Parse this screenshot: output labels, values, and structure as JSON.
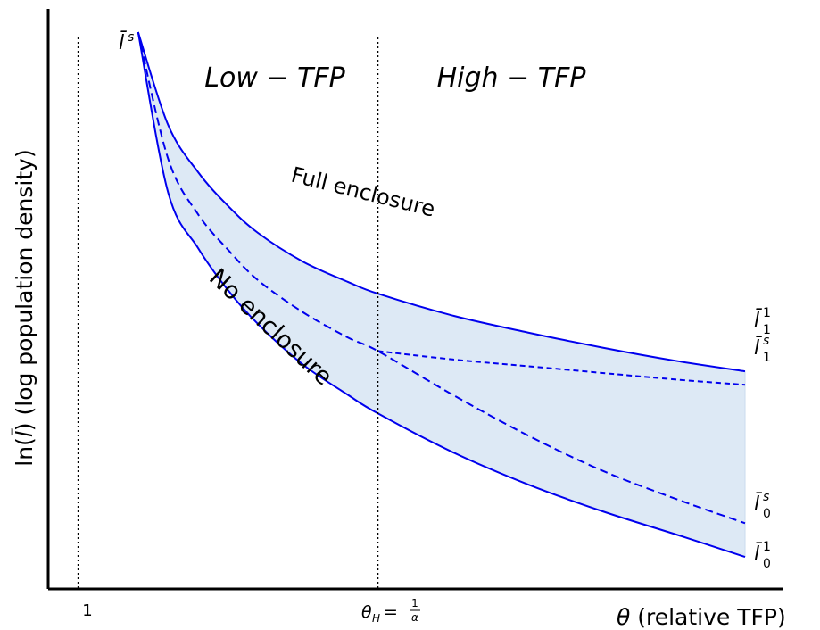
{
  "chart_data": {
    "type": "line",
    "xlabel": {
      "symbol": "θ",
      "text": " (relative TFP)"
    },
    "ylabel": {
      "prefix": "ln(",
      "symbol": "l̄",
      "suffix": ") (log population density)"
    },
    "x_ticks": [
      {
        "value": 1,
        "label": "1"
      },
      {
        "value": 3,
        "label_main": "θ",
        "label_sub": "H",
        "label_eq": " = ",
        "label_num": "1",
        "label_den": "α"
      }
    ],
    "xlim": [
      0.8,
      5.7
    ],
    "ylim": [
      -0.3,
      3.0
    ],
    "curve_x_start": 1.4,
    "curve_x_end": 5.45,
    "threshold_x": 3,
    "regions": [
      {
        "name": "low",
        "label": "Low − TFP"
      },
      {
        "name": "high",
        "label": "High − TFP"
      }
    ],
    "annotations": {
      "full_enclosure": "Full enclosure",
      "no_enclosure": "No enclosure"
    },
    "end_labels": {
      "start": {
        "base": "l̄",
        "sup": "s",
        "sub": ""
      },
      "full": {
        "base": "l̄",
        "sup": "1",
        "sub": "1"
      },
      "s1": {
        "base": "l̄",
        "sup": "s",
        "sub": "1"
      },
      "s0": {
        "base": "l̄",
        "sup": "s",
        "sub": "0"
      },
      "none": {
        "base": "l̄",
        "sup": "1",
        "sub": "0"
      }
    },
    "series": [
      {
        "key": "full",
        "style": "solid",
        "x": [
          1.4,
          1.6,
          1.8,
          2.0,
          2.2,
          2.5,
          2.8,
          3.0,
          3.5,
          4.0,
          4.5,
          5.0,
          5.45
        ],
        "y": [
          3.0,
          2.45,
          2.17,
          1.97,
          1.81,
          1.64,
          1.52,
          1.45,
          1.32,
          1.22,
          1.13,
          1.05,
          0.99
        ]
      },
      {
        "key": "none",
        "style": "solid",
        "x": [
          1.4,
          1.6,
          1.8,
          2.0,
          2.2,
          2.5,
          2.8,
          3.0,
          3.5,
          4.0,
          4.5,
          5.0,
          5.45
        ],
        "y": [
          3.0,
          2.05,
          1.72,
          1.47,
          1.27,
          1.03,
          0.85,
          0.74,
          0.51,
          0.32,
          0.16,
          0.02,
          -0.11
        ]
      },
      {
        "key": "s_curve",
        "style": "dashed",
        "x": [
          1.4,
          1.6,
          1.8,
          2.0,
          2.2,
          2.5,
          2.8,
          3.0,
          3.5,
          4.0,
          4.5,
          5.0,
          5.45
        ],
        "y": [
          3.0,
          2.25,
          1.92,
          1.71,
          1.53,
          1.34,
          1.19,
          1.11,
          0.85,
          0.61,
          0.4,
          0.23,
          0.09
        ]
      },
      {
        "key": "s_branch",
        "style": "dashed",
        "x": [
          3.0,
          3.5,
          4.0,
          4.5,
          5.0,
          5.45
        ],
        "y": [
          1.11,
          1.06,
          1.02,
          0.98,
          0.94,
          0.91
        ]
      }
    ],
    "colors": {
      "curve": "#0000ee",
      "fill": "#dde9f5",
      "axis": "#000000"
    },
    "grid": false,
    "legend": "none"
  }
}
